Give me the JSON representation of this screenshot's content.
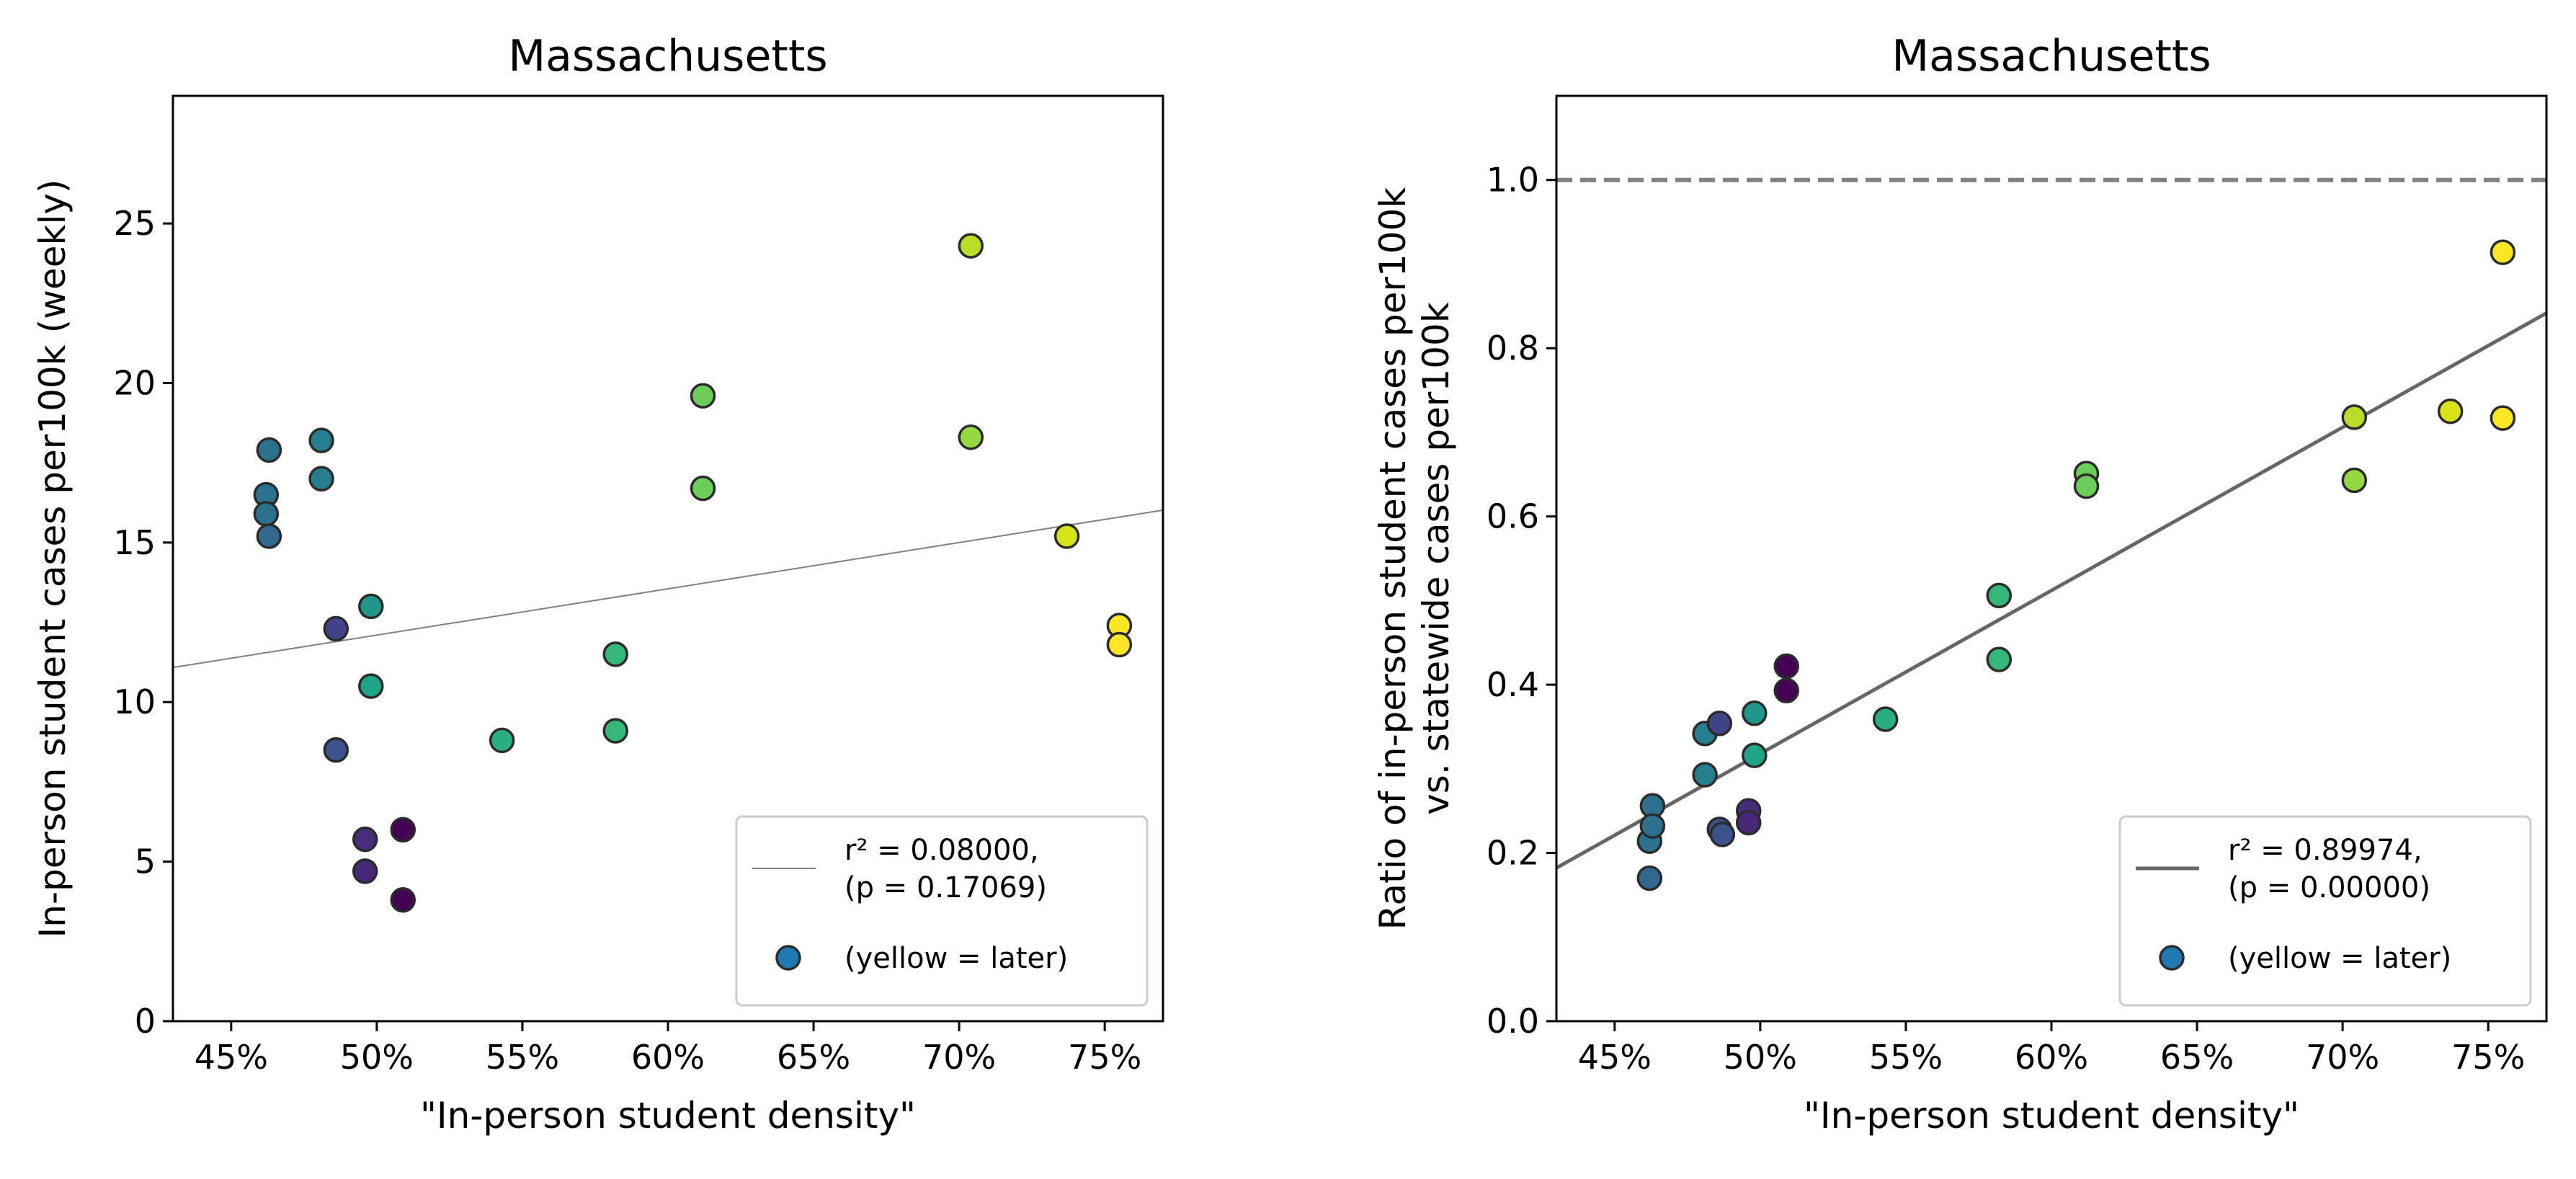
{
  "chart_data": [
    {
      "type": "scatter",
      "title": "Massachusetts",
      "xlabel": "\"In-person student density\"",
      "ylabel": "In-person student cases per100k (weekly)",
      "xlim": [
        0.43,
        0.77
      ],
      "ylim": [
        0,
        29
      ],
      "x_tick_values": [
        0.45,
        0.5,
        0.55,
        0.6,
        0.65,
        0.7,
        0.75
      ],
      "x_tick_labels": [
        "45%",
        "50%",
        "55%",
        "60%",
        "65%",
        "70%",
        "75%"
      ],
      "y_tick_values": [
        0,
        5,
        10,
        15,
        20,
        25
      ],
      "y_tick_labels": [
        "0",
        "5",
        "10",
        "15",
        "20",
        "25"
      ],
      "grid": false,
      "legend_position": "lower-right",
      "legend": {
        "fit_line_1": "r² = 0.08000,",
        "fit_line_2": "(p = 0.17069)",
        "points_label": "(yellow = later)"
      },
      "fit_line": {
        "slope": 14.5,
        "intercept": 4.85,
        "r2": 0.08,
        "p": 0.17069,
        "color": "#808080"
      },
      "points": [
        {
          "x": 0.462,
          "y": 16.5,
          "color": "#2c728e"
        },
        {
          "x": 0.462,
          "y": 15.9,
          "color": "#2c728e"
        },
        {
          "x": 0.463,
          "y": 17.9,
          "color": "#2c728e"
        },
        {
          "x": 0.463,
          "y": 15.2,
          "color": "#31688e"
        },
        {
          "x": 0.481,
          "y": 18.2,
          "color": "#277f8e"
        },
        {
          "x": 0.481,
          "y": 17.0,
          "color": "#277f8e"
        },
        {
          "x": 0.486,
          "y": 12.3,
          "color": "#414487"
        },
        {
          "x": 0.486,
          "y": 8.5,
          "color": "#3b528b"
        },
        {
          "x": 0.496,
          "y": 5.7,
          "color": "#472d7b"
        },
        {
          "x": 0.496,
          "y": 4.7,
          "color": "#482878"
        },
        {
          "x": 0.498,
          "y": 13.0,
          "color": "#1f988b"
        },
        {
          "x": 0.498,
          "y": 10.5,
          "color": "#20a486"
        },
        {
          "x": 0.509,
          "y": 6.0,
          "color": "#440154"
        },
        {
          "x": 0.509,
          "y": 3.8,
          "color": "#440154"
        },
        {
          "x": 0.543,
          "y": 8.8,
          "color": "#2ab07f"
        },
        {
          "x": 0.582,
          "y": 11.5,
          "color": "#35b779"
        },
        {
          "x": 0.582,
          "y": 9.1,
          "color": "#35b779"
        },
        {
          "x": 0.612,
          "y": 19.6,
          "color": "#6ccd5a"
        },
        {
          "x": 0.612,
          "y": 16.7,
          "color": "#6ccd5a"
        },
        {
          "x": 0.704,
          "y": 24.3,
          "color": "#b8de29"
        },
        {
          "x": 0.704,
          "y": 18.3,
          "color": "#95d840"
        },
        {
          "x": 0.737,
          "y": 15.2,
          "color": "#d8e219"
        },
        {
          "x": 0.755,
          "y": 12.4,
          "color": "#fde725"
        },
        {
          "x": 0.755,
          "y": 11.8,
          "color": "#fde725"
        }
      ]
    },
    {
      "type": "scatter",
      "title": "Massachusetts",
      "xlabel": "\"In-person student density\"",
      "ylabel_line1": "Ratio of in-person student cases per100k",
      "ylabel_line2": "vs. statewide cases per100k",
      "xlim": [
        0.43,
        0.77
      ],
      "ylim": [
        0,
        1.1
      ],
      "x_tick_values": [
        0.45,
        0.5,
        0.55,
        0.6,
        0.65,
        0.7,
        0.75
      ],
      "x_tick_labels": [
        "45%",
        "50%",
        "55%",
        "60%",
        "65%",
        "70%",
        "75%"
      ],
      "y_tick_values": [
        0.0,
        0.2,
        0.4,
        0.6,
        0.8,
        1.0
      ],
      "y_tick_labels": [
        "0.0",
        "0.2",
        "0.4",
        "0.6",
        "0.8",
        "1.0"
      ],
      "grid": false,
      "legend_position": "lower-right",
      "reference_line_y": 1.0,
      "legend": {
        "fit_line_1": "r² = 0.89974,",
        "fit_line_2": "(p = 0.00000)",
        "points_label": "(yellow = later)"
      },
      "fit_line": {
        "slope": 1.94,
        "intercept": -0.652,
        "r2": 0.89974,
        "p": 0.0,
        "color": "#666666"
      },
      "points": [
        {
          "x": 0.462,
          "y": 0.214,
          "color": "#2c728e"
        },
        {
          "x": 0.462,
          "y": 0.17,
          "color": "#31688e"
        },
        {
          "x": 0.463,
          "y": 0.256,
          "color": "#2c728e"
        },
        {
          "x": 0.463,
          "y": 0.232,
          "color": "#2c728e"
        },
        {
          "x": 0.481,
          "y": 0.342,
          "color": "#277f8e"
        },
        {
          "x": 0.481,
          "y": 0.293,
          "color": "#277f8e"
        },
        {
          "x": 0.486,
          "y": 0.354,
          "color": "#414487"
        },
        {
          "x": 0.486,
          "y": 0.228,
          "color": "#3b528b"
        },
        {
          "x": 0.487,
          "y": 0.222,
          "color": "#3b528b"
        },
        {
          "x": 0.496,
          "y": 0.25,
          "color": "#472d7b"
        },
        {
          "x": 0.496,
          "y": 0.236,
          "color": "#482878"
        },
        {
          "x": 0.498,
          "y": 0.366,
          "color": "#1f988b"
        },
        {
          "x": 0.498,
          "y": 0.316,
          "color": "#20a486"
        },
        {
          "x": 0.509,
          "y": 0.422,
          "color": "#440154"
        },
        {
          "x": 0.509,
          "y": 0.393,
          "color": "#440154"
        },
        {
          "x": 0.543,
          "y": 0.359,
          "color": "#2ab07f"
        },
        {
          "x": 0.582,
          "y": 0.506,
          "color": "#35b779"
        },
        {
          "x": 0.582,
          "y": 0.43,
          "color": "#35b779"
        },
        {
          "x": 0.612,
          "y": 0.651,
          "color": "#6ccd5a"
        },
        {
          "x": 0.612,
          "y": 0.636,
          "color": "#6ccd5a"
        },
        {
          "x": 0.704,
          "y": 0.718,
          "color": "#b8de29"
        },
        {
          "x": 0.704,
          "y": 0.643,
          "color": "#95d840"
        },
        {
          "x": 0.737,
          "y": 0.725,
          "color": "#d8e219"
        },
        {
          "x": 0.755,
          "y": 0.914,
          "color": "#fde725"
        },
        {
          "x": 0.755,
          "y": 0.717,
          "color": "#fde725"
        }
      ]
    }
  ]
}
